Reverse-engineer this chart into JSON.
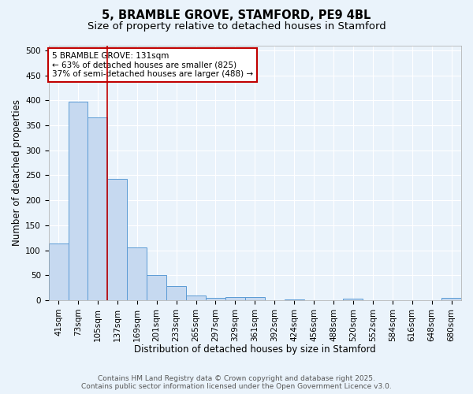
{
  "title_line1": "5, BRAMBLE GROVE, STAMFORD, PE9 4BL",
  "title_line2": "Size of property relative to detached houses in Stamford",
  "xlabel": "Distribution of detached houses by size in Stamford",
  "ylabel": "Number of detached properties",
  "bar_labels": [
    "41sqm",
    "73sqm",
    "105sqm",
    "137sqm",
    "169sqm",
    "201sqm",
    "233sqm",
    "265sqm",
    "297sqm",
    "329sqm",
    "361sqm",
    "392sqm",
    "424sqm",
    "456sqm",
    "488sqm",
    "520sqm",
    "552sqm",
    "584sqm",
    "616sqm",
    "648sqm",
    "680sqm"
  ],
  "bar_values": [
    113,
    398,
    365,
    243,
    105,
    50,
    29,
    10,
    5,
    6,
    6,
    0,
    2,
    0,
    0,
    3,
    0,
    0,
    0,
    0,
    4
  ],
  "bar_color": "#c6d9f0",
  "bar_edgecolor": "#5b9bd5",
  "vline_x": 2.5,
  "vline_color": "#c00000",
  "annotation_text": "5 BRAMBLE GROVE: 131sqm\n← 63% of detached houses are smaller (825)\n37% of semi-detached houses are larger (488) →",
  "annotation_box_color": "#ffffff",
  "annotation_box_edgecolor": "#c00000",
  "ylim": [
    0,
    510
  ],
  "yticks": [
    0,
    50,
    100,
    150,
    200,
    250,
    300,
    350,
    400,
    450,
    500
  ],
  "background_color": "#eaf3fb",
  "plot_bg_color": "#eaf3fb",
  "footer_line1": "Contains HM Land Registry data © Crown copyright and database right 2025.",
  "footer_line2": "Contains public sector information licensed under the Open Government Licence v3.0.",
  "title_fontsize": 10.5,
  "subtitle_fontsize": 9.5,
  "axis_label_fontsize": 8.5,
  "tick_fontsize": 7.5,
  "annotation_fontsize": 7.5,
  "footer_fontsize": 6.5
}
